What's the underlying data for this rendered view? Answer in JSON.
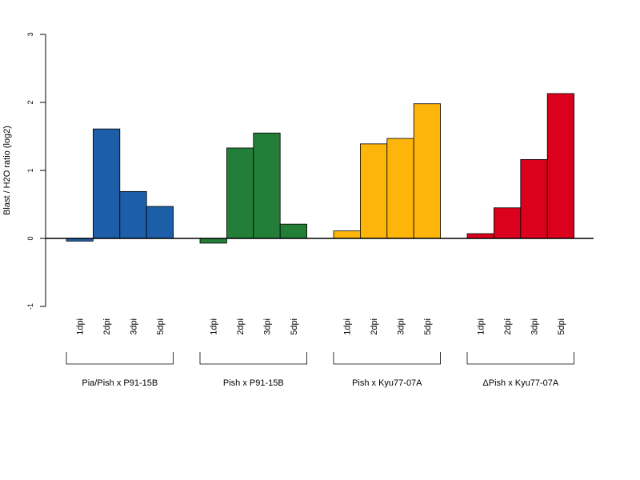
{
  "chart_data": {
    "type": "bar",
    "ylabel": "Blast / H2O ratio (log2)",
    "ylim": [
      -1,
      3
    ],
    "yticks": [
      -1,
      0,
      1,
      2,
      3
    ],
    "ytick_labels": [
      "-1",
      "0",
      "1",
      "2",
      "3"
    ],
    "categories": [
      "1dpi",
      "2dpi",
      "3dpi",
      "5dpi"
    ],
    "groups": [
      {
        "name": "Pia/Pish x P91-15B",
        "color": "#1c5ea8",
        "values": [
          -0.04,
          1.61,
          0.69,
          0.47
        ]
      },
      {
        "name": "Pish x P91-15B",
        "color": "#237e38",
        "values": [
          -0.07,
          1.33,
          1.55,
          0.21
        ]
      },
      {
        "name": "Pish x Kyu77-07A",
        "color": "#fdb40b",
        "values": [
          0.11,
          1.39,
          1.47,
          1.98
        ]
      },
      {
        "name": "ΔPish x Kyu77-07A",
        "color": "#db001c",
        "values": [
          0.07,
          0.45,
          1.16,
          2.13
        ]
      }
    ],
    "zero_line": true,
    "grid": false,
    "legend": "none"
  }
}
